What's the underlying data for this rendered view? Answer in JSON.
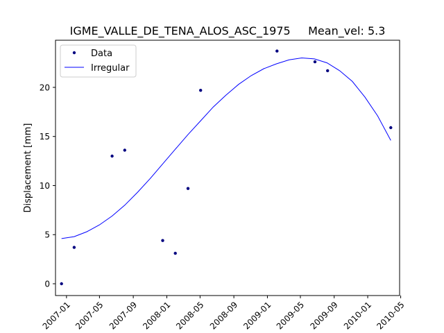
{
  "chart_data": {
    "type": "scatter",
    "title": "IGME_VALLE_DE_TENA_ALOS_ASC_1975     Mean_vel: 5.3",
    "xlabel": "",
    "ylabel": "Displacement [mm]",
    "xlim": [
      "2006-11-22",
      "2010-04-27"
    ],
    "ylim": [
      -1.2,
      24.8
    ],
    "grid": false,
    "legend_position": "top-left",
    "x_ticks": [
      "2007-01",
      "2007-05",
      "2007-09",
      "2008-01",
      "2008-05",
      "2008-09",
      "2009-01",
      "2009-05",
      "2009-09",
      "2010-01",
      "2010-05"
    ],
    "y_ticks": [
      0,
      5,
      10,
      15,
      20
    ],
    "series": [
      {
        "name": "Data",
        "kind": "points",
        "color": "#000080",
        "points": [
          {
            "x": "2006-12-14",
            "y": 0.0
          },
          {
            "x": "2007-01-29",
            "y": 3.7
          },
          {
            "x": "2007-06-16",
            "y": 13.0
          },
          {
            "x": "2007-08-01",
            "y": 13.6
          },
          {
            "x": "2007-12-17",
            "y": 4.4
          },
          {
            "x": "2008-02-01",
            "y": 3.1
          },
          {
            "x": "2008-03-18",
            "y": 9.7
          },
          {
            "x": "2008-05-03",
            "y": 19.7
          },
          {
            "x": "2009-02-05",
            "y": 23.7
          },
          {
            "x": "2009-06-23",
            "y": 22.6
          },
          {
            "x": "2009-08-08",
            "y": 21.7
          },
          {
            "x": "2010-03-26",
            "y": 15.9
          }
        ]
      },
      {
        "name": "Irregular",
        "kind": "line",
        "color": "#0000ff",
        "points": [
          {
            "x": "2006-12-14",
            "y": 4.6
          },
          {
            "x": "2007-01-29",
            "y": 4.8
          },
          {
            "x": "2007-03-16",
            "y": 5.3
          },
          {
            "x": "2007-05-01",
            "y": 6.0
          },
          {
            "x": "2007-06-16",
            "y": 6.9
          },
          {
            "x": "2007-08-01",
            "y": 8.0
          },
          {
            "x": "2007-09-16",
            "y": 9.3
          },
          {
            "x": "2007-11-01",
            "y": 10.7
          },
          {
            "x": "2007-12-17",
            "y": 12.2
          },
          {
            "x": "2008-02-01",
            "y": 13.7
          },
          {
            "x": "2008-03-18",
            "y": 15.2
          },
          {
            "x": "2008-05-03",
            "y": 16.6
          },
          {
            "x": "2008-06-18",
            "y": 18.0
          },
          {
            "x": "2008-08-03",
            "y": 19.2
          },
          {
            "x": "2008-09-18",
            "y": 20.3
          },
          {
            "x": "2008-11-03",
            "y": 21.2
          },
          {
            "x": "2008-12-19",
            "y": 21.9
          },
          {
            "x": "2009-02-03",
            "y": 22.4
          },
          {
            "x": "2009-03-21",
            "y": 22.8
          },
          {
            "x": "2009-05-06",
            "y": 23.0
          },
          {
            "x": "2009-06-21",
            "y": 22.9
          },
          {
            "x": "2009-08-06",
            "y": 22.5
          },
          {
            "x": "2009-09-21",
            "y": 21.7
          },
          {
            "x": "2009-11-06",
            "y": 20.6
          },
          {
            "x": "2009-12-22",
            "y": 19.0
          },
          {
            "x": "2010-02-06",
            "y": 17.1
          },
          {
            "x": "2010-03-26",
            "y": 14.6
          }
        ]
      }
    ]
  }
}
